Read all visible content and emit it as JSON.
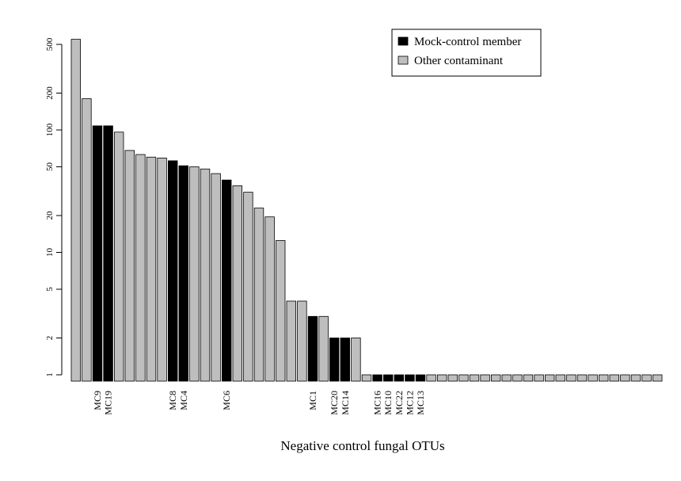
{
  "chart_data": {
    "type": "bar",
    "title": "",
    "xlabel": "Negative control fungal OTUs",
    "ylabel": "",
    "y_scale": "log",
    "ylim": [
      1,
      600
    ],
    "y_ticks": [
      1,
      2,
      5,
      10,
      20,
      50,
      100,
      200,
      500
    ],
    "legend": {
      "placement": "top-right",
      "entries": [
        {
          "name": "Mock-control member",
          "color": "#000000"
        },
        {
          "name": "Other contaminant",
          "color": "#bebebe"
        }
      ]
    },
    "colors": {
      "mock": "#000000",
      "other": "#bebebe"
    },
    "bars": [
      {
        "label": "",
        "value": 550,
        "group": "other"
      },
      {
        "label": "",
        "value": 180,
        "group": "other"
      },
      {
        "label": "MC9",
        "value": 108,
        "group": "mock"
      },
      {
        "label": "MC19",
        "value": 108,
        "group": "mock"
      },
      {
        "label": "",
        "value": 96,
        "group": "other"
      },
      {
        "label": "",
        "value": 68,
        "group": "other"
      },
      {
        "label": "",
        "value": 63,
        "group": "other"
      },
      {
        "label": "",
        "value": 60,
        "group": "other"
      },
      {
        "label": "",
        "value": 59,
        "group": "other"
      },
      {
        "label": "MC8",
        "value": 56,
        "group": "mock"
      },
      {
        "label": "MC4",
        "value": 51,
        "group": "mock"
      },
      {
        "label": "",
        "value": 50,
        "group": "other"
      },
      {
        "label": "",
        "value": 48,
        "group": "other"
      },
      {
        "label": "",
        "value": 44,
        "group": "other"
      },
      {
        "label": "MC6",
        "value": 39,
        "group": "mock"
      },
      {
        "label": "",
        "value": 35,
        "group": "other"
      },
      {
        "label": "",
        "value": 31,
        "group": "other"
      },
      {
        "label": "",
        "value": 23,
        "group": "other"
      },
      {
        "label": "",
        "value": 19.5,
        "group": "other"
      },
      {
        "label": "",
        "value": 12.5,
        "group": "other"
      },
      {
        "label": "",
        "value": 4,
        "group": "other"
      },
      {
        "label": "",
        "value": 4,
        "group": "other"
      },
      {
        "label": "MC1",
        "value": 3,
        "group": "mock"
      },
      {
        "label": "",
        "value": 3,
        "group": "other"
      },
      {
        "label": "MC20",
        "value": 2,
        "group": "mock"
      },
      {
        "label": "MC14",
        "value": 2,
        "group": "mock"
      },
      {
        "label": "",
        "value": 2,
        "group": "other"
      },
      {
        "label": "",
        "value": 1,
        "group": "other"
      },
      {
        "label": "MC16",
        "value": 1,
        "group": "mock"
      },
      {
        "label": "MC10",
        "value": 1,
        "group": "mock"
      },
      {
        "label": "MC22",
        "value": 1,
        "group": "mock"
      },
      {
        "label": "MC12",
        "value": 1,
        "group": "mock"
      },
      {
        "label": "MC13",
        "value": 1,
        "group": "mock"
      },
      {
        "label": "",
        "value": 1,
        "group": "other"
      },
      {
        "label": "",
        "value": 1,
        "group": "other"
      },
      {
        "label": "",
        "value": 1,
        "group": "other"
      },
      {
        "label": "",
        "value": 1,
        "group": "other"
      },
      {
        "label": "",
        "value": 1,
        "group": "other"
      },
      {
        "label": "",
        "value": 1,
        "group": "other"
      },
      {
        "label": "",
        "value": 1,
        "group": "other"
      },
      {
        "label": "",
        "value": 1,
        "group": "other"
      },
      {
        "label": "",
        "value": 1,
        "group": "other"
      },
      {
        "label": "",
        "value": 1,
        "group": "other"
      },
      {
        "label": "",
        "value": 1,
        "group": "other"
      },
      {
        "label": "",
        "value": 1,
        "group": "other"
      },
      {
        "label": "",
        "value": 1,
        "group": "other"
      },
      {
        "label": "",
        "value": 1,
        "group": "other"
      },
      {
        "label": "",
        "value": 1,
        "group": "other"
      },
      {
        "label": "",
        "value": 1,
        "group": "other"
      },
      {
        "label": "",
        "value": 1,
        "group": "other"
      },
      {
        "label": "",
        "value": 1,
        "group": "other"
      },
      {
        "label": "",
        "value": 1,
        "group": "other"
      },
      {
        "label": "",
        "value": 1,
        "group": "other"
      },
      {
        "label": "",
        "value": 1,
        "group": "other"
      },
      {
        "label": "",
        "value": 1,
        "group": "other"
      }
    ]
  }
}
